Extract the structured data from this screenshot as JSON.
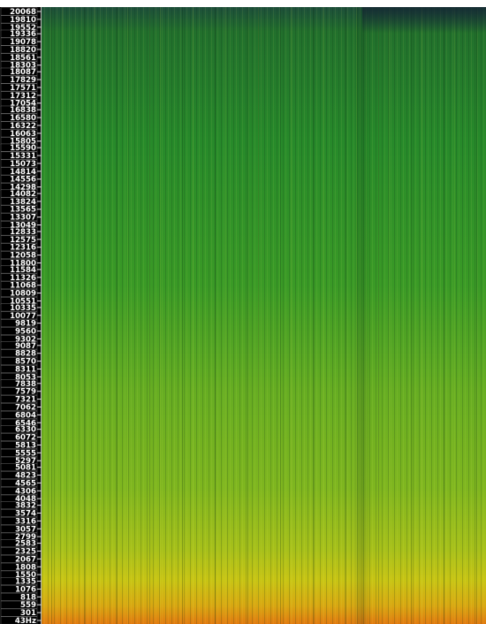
{
  "chart_data": {
    "type": "spectrogram",
    "ylim": [
      43,
      20068
    ],
    "yticks": [
      20068,
      19810,
      19552,
      19336,
      19078,
      18820,
      18561,
      18303,
      18087,
      17829,
      17571,
      17312,
      17054,
      16838,
      16580,
      16322,
      16063,
      15805,
      15590,
      15331,
      15073,
      14814,
      14556,
      14298,
      14082,
      13824,
      13565,
      13307,
      13049,
      12833,
      12575,
      12316,
      12058,
      11800,
      11584,
      11326,
      11068,
      10809,
      10551,
      10335,
      10077,
      9819,
      9560,
      9302,
      9087,
      8828,
      8570,
      8311,
      8053,
      7838,
      7579,
      7321,
      7062,
      6804,
      6546,
      6330,
      6072,
      5813,
      5555,
      5297,
      5081,
      4823,
      4565,
      4306,
      4048,
      3832,
      3574,
      3316,
      3057,
      2799,
      2583,
      2325,
      2067,
      1808,
      1550,
      1335,
      1076,
      818,
      559,
      301,
      {
        "value": 43,
        "label": "43Hz"
      }
    ]
  }
}
